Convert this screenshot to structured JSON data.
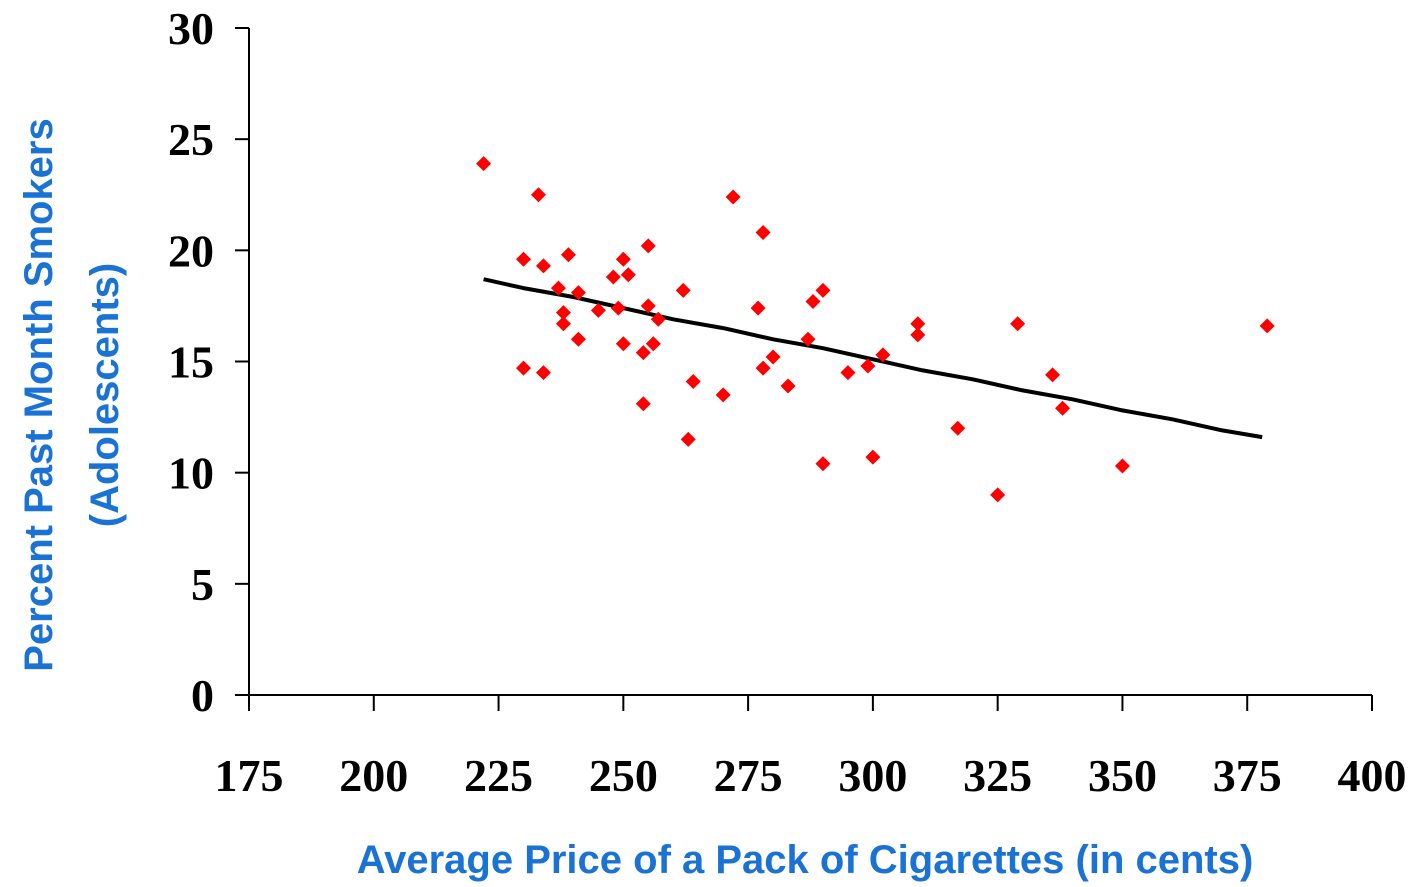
{
  "chart_data": {
    "type": "scatter",
    "xlabel": "Average Price of a Pack of Cigarettes (in cents)",
    "ylabel_lines": [
      "Percent Past Month Smokers",
      "(Adolescents)"
    ],
    "xlim": [
      175,
      400
    ],
    "ylim": [
      0,
      30
    ],
    "xticks": [
      175,
      200,
      225,
      250,
      275,
      300,
      325,
      350,
      375,
      400
    ],
    "yticks": [
      0,
      5,
      10,
      15,
      20,
      25,
      30
    ],
    "grid": false,
    "legend": "none",
    "points": [
      {
        "x": 222,
        "y": 23.9
      },
      {
        "x": 230,
        "y": 19.6
      },
      {
        "x": 230,
        "y": 14.7
      },
      {
        "x": 233,
        "y": 22.5
      },
      {
        "x": 234,
        "y": 19.3
      },
      {
        "x": 234,
        "y": 14.5
      },
      {
        "x": 237,
        "y": 18.3
      },
      {
        "x": 238,
        "y": 17.2
      },
      {
        "x": 238,
        "y": 16.7
      },
      {
        "x": 239,
        "y": 19.8
      },
      {
        "x": 241,
        "y": 18.1
      },
      {
        "x": 241,
        "y": 16.0
      },
      {
        "x": 245,
        "y": 17.3
      },
      {
        "x": 248,
        "y": 18.8
      },
      {
        "x": 249,
        "y": 17.4
      },
      {
        "x": 250,
        "y": 19.6
      },
      {
        "x": 250,
        "y": 15.8
      },
      {
        "x": 251,
        "y": 18.9
      },
      {
        "x": 254,
        "y": 15.4
      },
      {
        "x": 254,
        "y": 13.1
      },
      {
        "x": 255,
        "y": 20.2
      },
      {
        "x": 255,
        "y": 17.5
      },
      {
        "x": 256,
        "y": 15.8
      },
      {
        "x": 257,
        "y": 16.9
      },
      {
        "x": 262,
        "y": 18.2
      },
      {
        "x": 263,
        "y": 11.5
      },
      {
        "x": 264,
        "y": 14.1
      },
      {
        "x": 270,
        "y": 13.5
      },
      {
        "x": 272,
        "y": 22.4
      },
      {
        "x": 277,
        "y": 17.4
      },
      {
        "x": 278,
        "y": 20.8
      },
      {
        "x": 278,
        "y": 14.7
      },
      {
        "x": 280,
        "y": 15.2
      },
      {
        "x": 283,
        "y": 13.9
      },
      {
        "x": 287,
        "y": 16.0
      },
      {
        "x": 288,
        "y": 17.7
      },
      {
        "x": 290,
        "y": 18.2
      },
      {
        "x": 290,
        "y": 10.4
      },
      {
        "x": 295,
        "y": 14.5
      },
      {
        "x": 299,
        "y": 14.8
      },
      {
        "x": 300,
        "y": 10.7
      },
      {
        "x": 302,
        "y": 15.3
      },
      {
        "x": 309,
        "y": 16.7
      },
      {
        "x": 309,
        "y": 16.2
      },
      {
        "x": 317,
        "y": 12.0
      },
      {
        "x": 325,
        "y": 9.0
      },
      {
        "x": 329,
        "y": 16.7
      },
      {
        "x": 336,
        "y": 14.4
      },
      {
        "x": 338,
        "y": 12.9
      },
      {
        "x": 350,
        "y": 10.3
      },
      {
        "x": 379,
        "y": 16.6
      }
    ],
    "trendline": [
      {
        "x": 222,
        "y": 18.7
      },
      {
        "x": 230,
        "y": 18.3
      },
      {
        "x": 240,
        "y": 17.9
      },
      {
        "x": 250,
        "y": 17.4
      },
      {
        "x": 260,
        "y": 16.9
      },
      {
        "x": 270,
        "y": 16.5
      },
      {
        "x": 280,
        "y": 16.0
      },
      {
        "x": 290,
        "y": 15.6
      },
      {
        "x": 300,
        "y": 15.1
      },
      {
        "x": 310,
        "y": 14.6
      },
      {
        "x": 320,
        "y": 14.2
      },
      {
        "x": 330,
        "y": 13.7
      },
      {
        "x": 340,
        "y": 13.3
      },
      {
        "x": 350,
        "y": 12.8
      },
      {
        "x": 360,
        "y": 12.4
      },
      {
        "x": 370,
        "y": 11.9
      },
      {
        "x": 378,
        "y": 11.6
      }
    ],
    "colors": {
      "points": "#ff0000",
      "trendline": "#000000",
      "axis_titles": "#1a73d4",
      "axis": "#000000"
    }
  }
}
